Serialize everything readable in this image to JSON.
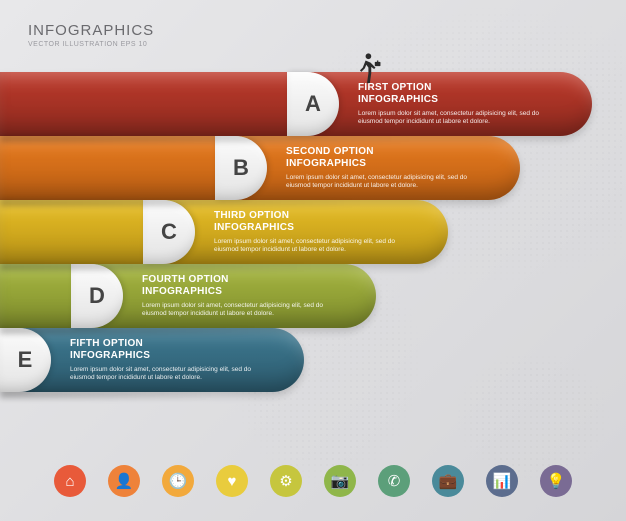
{
  "header": {
    "title": "INFOGRAPHICS",
    "subtitle": "VECTOR ILLUSTRATION EPS 10"
  },
  "layout": {
    "step_height": 64,
    "step_offset_x": 72,
    "step_base_width": 582,
    "border_radius": 32,
    "title_fontsize": 10,
    "desc_fontsize": 6.5
  },
  "lorem": "Lorem ipsum dolor sit amet, consectetur adipisicing elit, sed do eiusmod tempor incididunt ut labore et dolore.",
  "steps": [
    {
      "letter": "A",
      "title": "FIRST OPTION",
      "sub": "INFOGRAPHICS",
      "fill": "#be3a2b",
      "shadow": "#8d2a1f"
    },
    {
      "letter": "B",
      "title": "SECOND OPTION",
      "sub": "INFOGRAPHICS",
      "fill": "#e97c1f",
      "shadow": "#b95d13"
    },
    {
      "letter": "C",
      "title": "THIRD OPTION",
      "sub": "INFOGRAPHICS",
      "fill": "#e8bf26",
      "shadow": "#b99316"
    },
    {
      "letter": "D",
      "title": "FOURTH OPTION",
      "sub": "INFOGRAPHICS",
      "fill": "#a7b741",
      "shadow": "#7e8c2c"
    },
    {
      "letter": "E",
      "title": "FIFTH OPTION",
      "sub": "INFOGRAPHICS",
      "fill": "#3e7a92",
      "shadow": "#2c5a6d"
    }
  ],
  "icons": [
    {
      "name": "home-icon",
      "glyph": "⌂",
      "color": "#e85a3a"
    },
    {
      "name": "person-icon",
      "glyph": "👤",
      "color": "#ee823a"
    },
    {
      "name": "clock-icon",
      "glyph": "🕒",
      "color": "#f2a93c"
    },
    {
      "name": "heart-icon",
      "glyph": "♥",
      "color": "#e9cc3d"
    },
    {
      "name": "gear-icon",
      "glyph": "⚙",
      "color": "#c6c63e"
    },
    {
      "name": "camera-icon",
      "glyph": "📷",
      "color": "#8fb64a"
    },
    {
      "name": "phone-icon",
      "glyph": "✆",
      "color": "#5c9f7a"
    },
    {
      "name": "briefcase-icon",
      "glyph": "💼",
      "color": "#4a8a9a"
    },
    {
      "name": "chart-icon",
      "glyph": "📊",
      "color": "#5c6d8e"
    },
    {
      "name": "bulb-icon",
      "glyph": "💡",
      "color": "#7a6b94"
    }
  ],
  "background_gradient": [
    "#e8e8ea",
    "#d5d5d8"
  ],
  "walker_color": "#2b2b2b"
}
